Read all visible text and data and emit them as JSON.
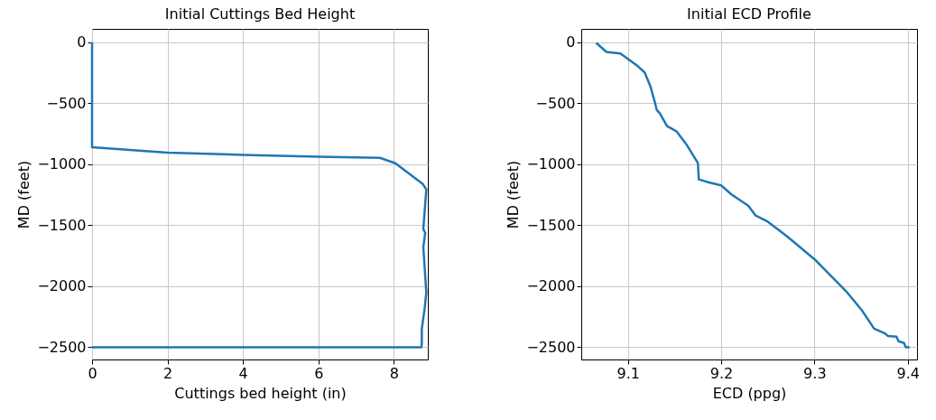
{
  "chart_data": [
    {
      "type": "line",
      "title": "Initial Cuttings Bed Height",
      "xlabel": "Cuttings bed height (in)",
      "ylabel": "MD (feet)",
      "xlim": [
        0,
        8.9
      ],
      "xticks": [
        0,
        2,
        4,
        6,
        8
      ],
      "ylim": [
        -2600,
        110
      ],
      "yticks": [
        0,
        -500,
        -1000,
        -1500,
        -2000,
        -2500
      ],
      "grid": true,
      "series": [
        {
          "color": "#1f77b4",
          "x": [
            0,
            0,
            2,
            4,
            6,
            7.63,
            8.04,
            8.76,
            8.86,
            8.78,
            8.83,
            8.78,
            8.86,
            8.82,
            8.78,
            8.74,
            8.74,
            8.73,
            0
          ],
          "values": [
            0,
            -860,
            -905,
            -922,
            -937,
            -947,
            -991,
            -1159,
            -1206,
            -1531,
            -1562,
            -1680,
            -2050,
            -2170,
            -2260,
            -2350,
            -2470,
            -2500,
            -2500
          ]
        }
      ]
    },
    {
      "type": "line",
      "title": "Initial ECD Profile",
      "xlabel": "ECD (ppg)",
      "ylabel": "MD (feet)",
      "xlim": [
        9.05,
        9.41
      ],
      "xticks": [
        9.1,
        9.2,
        9.3,
        9.4
      ],
      "ylim": [
        -2600,
        110
      ],
      "yticks": [
        0,
        -500,
        -1000,
        -1500,
        -2000,
        -2500
      ],
      "grid": true,
      "series": [
        {
          "color": "#1f77b4",
          "x": [
            9.066,
            9.077,
            9.092,
            9.1,
            9.111,
            9.118,
            9.124,
            9.129,
            9.131,
            9.134,
            9.142,
            9.152,
            9.163,
            9.175,
            9.176,
            9.187,
            9.2,
            9.211,
            9.229,
            9.237,
            9.25,
            9.271,
            9.3,
            9.335,
            9.351,
            9.364,
            9.375,
            9.379,
            9.388,
            9.39,
            9.396,
            9.398,
            9.402
          ],
          "values": [
            -5,
            -79,
            -91,
            -136,
            -198,
            -247,
            -358,
            -494,
            -556,
            -580,
            -687,
            -729,
            -840,
            -988,
            -1124,
            -1149,
            -1173,
            -1247,
            -1339,
            -1420,
            -1470,
            -1593,
            -1778,
            -2050,
            -2198,
            -2347,
            -2384,
            -2408,
            -2413,
            -2450,
            -2465,
            -2500,
            -2500
          ]
        }
      ]
    }
  ]
}
